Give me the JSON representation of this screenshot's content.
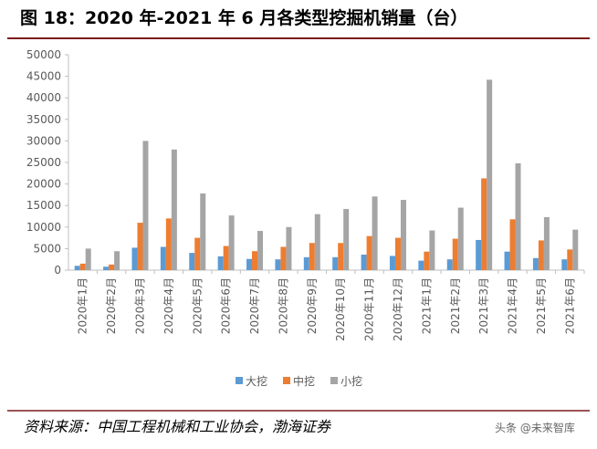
{
  "chart_data": {
    "type": "bar",
    "title": "图 18：2020 年-2021 年 6 月各类型挖掘机销量（台）",
    "source": "资料来源：中国工程机械和工业协会，渤海证券",
    "watermark": "头条 @未来智库",
    "categories": [
      "2020年1月",
      "2020年2月",
      "2020年3月",
      "2020年4月",
      "2020年5月",
      "2020年6月",
      "2020年7月",
      "2020年8月",
      "2020年9月",
      "2020年10月",
      "2020年11月",
      "2020年12月",
      "2021年1月",
      "2021年2月",
      "2021年3月",
      "2021年4月",
      "2021年5月",
      "2021年6月"
    ],
    "series": [
      {
        "name": "大挖",
        "color": "#5b9bd5",
        "values": [
          1000,
          800,
          5200,
          5400,
          4000,
          3200,
          2600,
          2500,
          3000,
          3000,
          3600,
          3300,
          2200,
          2500,
          7000,
          4300,
          2800,
          2500
        ]
      },
      {
        "name": "中挖",
        "color": "#ed7d31",
        "values": [
          1500,
          1300,
          11000,
          12000,
          7500,
          5600,
          4400,
          5400,
          6300,
          6300,
          7900,
          7500,
          4300,
          7300,
          21300,
          11800,
          6900,
          4800
        ]
      },
      {
        "name": "小挖",
        "color": "#a5a5a5",
        "values": [
          5000,
          4400,
          30000,
          28000,
          17800,
          12700,
          9100,
          10000,
          13000,
          14200,
          17100,
          16300,
          9200,
          14500,
          44200,
          24800,
          12300,
          9400
        ]
      }
    ],
    "ylim": [
      0,
      50000
    ],
    "yticks": [
      0,
      5000,
      10000,
      15000,
      20000,
      25000,
      30000,
      35000,
      40000,
      45000,
      50000
    ],
    "legend": "bottom"
  }
}
